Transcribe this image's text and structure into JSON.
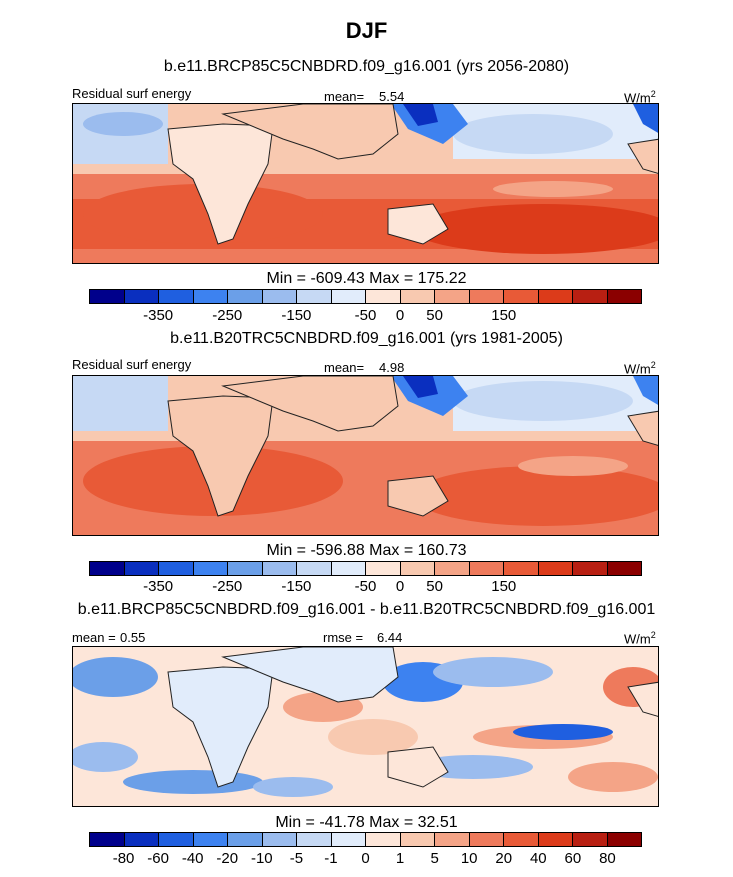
{
  "title": "DJF",
  "panels": [
    {
      "case_title": "b.e11.BRCP85C5CNBDRD.f09_g16.001 (yrs 2056-2080)",
      "left_label": "Residual surf energy",
      "stat1_label": "mean=",
      "stat1_value": "5.54",
      "units": "W/m",
      "units_sup": "2",
      "minmax": "Min = -609.43 Max = 175.22"
    },
    {
      "case_title": "b.e11.B20TRC5CNBDRD.f09_g16.001 (yrs 1981-2005)",
      "left_label": "Residual surf energy",
      "stat1_label": "mean=",
      "stat1_value": "4.98",
      "units": "W/m",
      "units_sup": "2",
      "minmax": "Min = -596.88 Max = 160.73"
    },
    {
      "case_title": "b.e11.BRCP85C5CNBDRD.f09_g16.001 - b.e11.B20TRC5CNBDRD.f09_g16.001",
      "left_label": "mean =",
      "left_value": "0.55",
      "stat1_label": "rmse =",
      "stat1_value": "6.44",
      "units": "W/m",
      "units_sup": "2",
      "minmax": "Min = -41.78 Max =  32.51"
    }
  ],
  "colorbars": {
    "colors": [
      "#00008b",
      "#0a2fbf",
      "#1f5fe0",
      "#3d82f0",
      "#6b9fe8",
      "#9bbcee",
      "#c6d9f4",
      "#e1ecfb",
      "#fde6d9",
      "#f8c9b0",
      "#f4a487",
      "#ee7a5c",
      "#e85a37",
      "#dc3b1a",
      "#b81f12",
      "#8b0000"
    ],
    "abs_ticks": [
      "-350",
      "-250",
      "-150",
      "-50",
      "0",
      "50",
      "150"
    ],
    "abs_tick_positions": [
      2,
      4,
      6,
      8,
      9,
      10,
      12
    ],
    "diff_ticks": [
      "-80",
      "-60",
      "-40",
      "-20",
      "-10",
      "-5",
      "-1",
      "0",
      "1",
      "5",
      "10",
      "20",
      "40",
      "60",
      "80"
    ],
    "diff_tick_positions": [
      1,
      2,
      3,
      4,
      5,
      6,
      7,
      8,
      9,
      10,
      11,
      12,
      13,
      14,
      15
    ]
  },
  "chart_data": [
    {
      "type": "heatmap",
      "title": "b.e11.BRCP85C5CNBDRD.f09_g16.001 (yrs 2056-2080)",
      "variable": "Residual surf energy",
      "units": "W/m^2",
      "season": "DJF",
      "mean": 5.54,
      "min": -609.43,
      "max": 175.22,
      "levels": [
        -350,
        -300,
        -250,
        -200,
        -150,
        -100,
        -50,
        0,
        25,
        50,
        100,
        150,
        200
      ]
    },
    {
      "type": "heatmap",
      "title": "b.e11.B20TRC5CNBDRD.f09_g16.001 (yrs 1981-2005)",
      "variable": "Residual surf energy",
      "units": "W/m^2",
      "season": "DJF",
      "mean": 4.98,
      "min": -596.88,
      "max": 160.73,
      "levels": [
        -350,
        -300,
        -250,
        -200,
        -150,
        -100,
        -50,
        0,
        25,
        50,
        100,
        150,
        200
      ]
    },
    {
      "type": "heatmap",
      "title": "b.e11.BRCP85C5CNBDRD.f09_g16.001 - b.e11.B20TRC5CNBDRD.f09_g16.001",
      "units": "W/m^2",
      "season": "DJF",
      "mean": 0.55,
      "rmse": 6.44,
      "min": -41.78,
      "max": 32.51,
      "levels": [
        -80,
        -60,
        -40,
        -20,
        -10,
        -5,
        -1,
        0,
        1,
        5,
        10,
        20,
        40,
        60,
        80
      ]
    }
  ]
}
